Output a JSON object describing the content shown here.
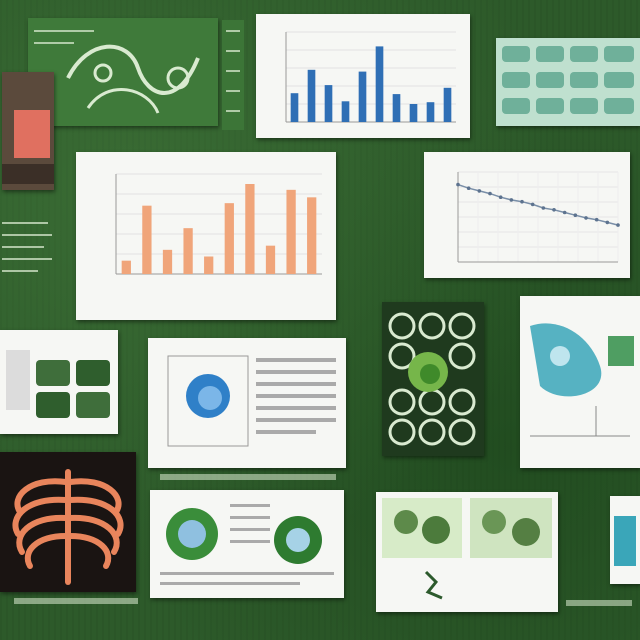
{
  "chart_data": [
    {
      "type": "bar",
      "values": [
        3.2,
        5.8,
        4.1,
        2.3,
        5.6,
        8.4,
        3.1,
        2.0,
        2.2,
        3.8
      ],
      "color": "#2f6fb5",
      "ylim": [
        0,
        10
      ]
    },
    {
      "type": "bar",
      "values": [
        1.6,
        8.2,
        2.9,
        5.5,
        2.1,
        8.5,
        10.8,
        3.4,
        10.1,
        9.2
      ],
      "color": "#f0a57a",
      "ylim": [
        0,
        12
      ]
    },
    {
      "type": "line",
      "x": [
        0,
        1,
        2,
        3,
        4,
        5,
        6,
        7,
        8,
        9,
        10,
        11,
        12,
        13,
        14,
        15
      ],
      "y": [
        8.6,
        8.2,
        7.9,
        7.6,
        7.2,
        6.9,
        6.7,
        6.4,
        6.0,
        5.8,
        5.5,
        5.2,
        4.9,
        4.7,
        4.4,
        4.1
      ],
      "color": "#7a8fa8",
      "ylim": [
        0,
        10
      ]
    }
  ],
  "colors": {
    "background": "#2d5a2a",
    "panel_white": "#f6f7f4",
    "panel_green": "#3f7a3a",
    "accent_orange": "#f0a57a",
    "accent_blue": "#2f6fb5",
    "accent_teal": "#3aa6b9",
    "ribcage": "#e9855c"
  }
}
